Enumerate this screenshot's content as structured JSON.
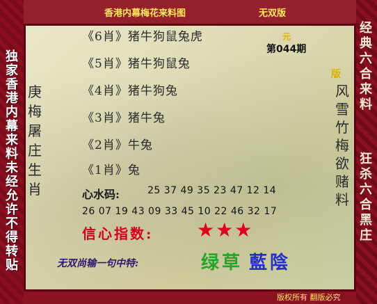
{
  "header": {
    "title": "香港内幕梅花来料图",
    "badge": "无双版"
  },
  "side_left": [
    "独",
    "家",
    "香",
    "港",
    "内",
    "幕",
    "来",
    "料",
    "未",
    "经",
    "允",
    "许",
    "不",
    "得",
    "转",
    "贴"
  ],
  "side_right_top": [
    "经",
    "典",
    "六",
    "合",
    "来",
    "料"
  ],
  "side_right_bottom": [
    "狂",
    "杀",
    "六",
    "合",
    "黑",
    "庄"
  ],
  "calligraphy_left": [
    "庚",
    "梅",
    "屠",
    "庄",
    "生",
    "肖"
  ],
  "calligraphy_right": [
    "风",
    "雪",
    "竹",
    "梅",
    "欲",
    "赌",
    "料"
  ],
  "marks": {
    "yuan": "元",
    "ban": "版"
  },
  "issue": "第044期",
  "tiers": [
    {
      "label": "《6肖》",
      "text": "猪牛狗鼠兔虎"
    },
    {
      "label": "《5肖》",
      "text": "猪牛狗鼠兔"
    },
    {
      "label": "《4肖》",
      "text": "猪牛狗兔"
    },
    {
      "label": "《3肖》",
      "text": "猪牛兔"
    },
    {
      "label": "《2肖》",
      "text": "牛兔"
    },
    {
      "label": "《1肖》",
      "text": "兔"
    }
  ],
  "heart_numbers": {
    "label": "心水码:",
    "line1": "25 37 49 35 23 47 12 14",
    "line2": "26 07 19 43 09 33 45 10 22 46 32 17"
  },
  "confidence": {
    "label": "信心指数:",
    "stars": "★★★",
    "rating": 3
  },
  "slogan": "无双尚输一句中特:",
  "color_words": {
    "green": "绿草",
    "blue": "藍陰"
  },
  "footer": "版权所有 翻版必究"
}
